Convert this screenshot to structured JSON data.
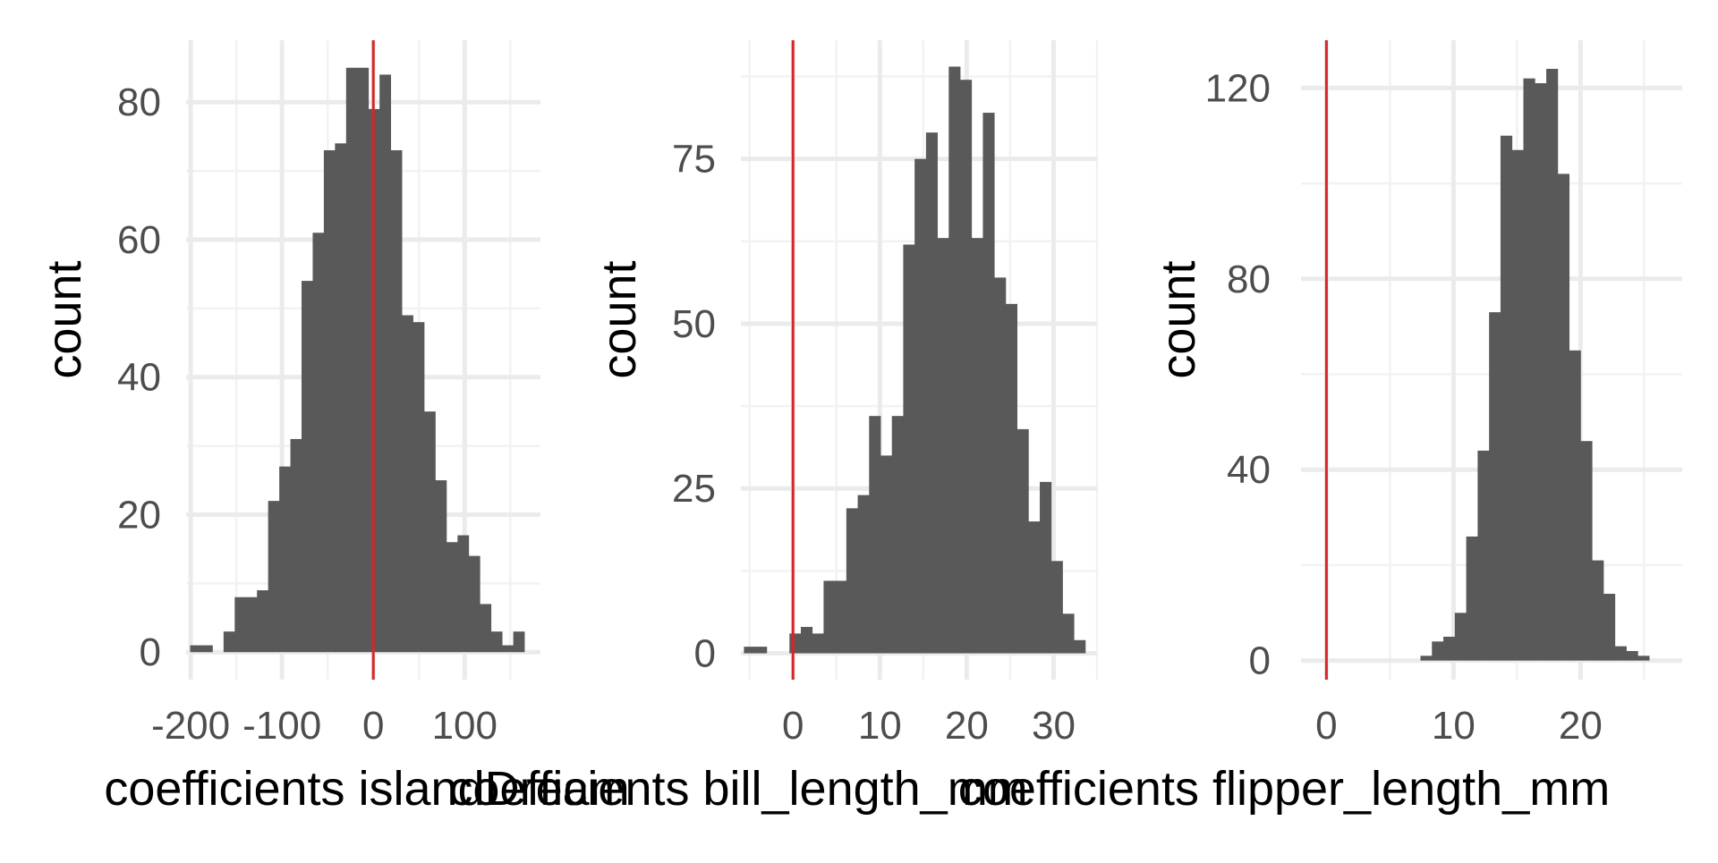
{
  "colors": {
    "bar": "#595959",
    "ref_line": "#d62728",
    "grid_major": "#ebebeb",
    "grid_minor": "#f2f2f2",
    "background": "#ffffff"
  },
  "chart_data": [
    {
      "type": "bar",
      "title": "",
      "xlabel": "coefficients islandDream",
      "ylabel": "count",
      "xlim": [
        -205,
        183
      ],
      "ylim": [
        -4,
        89
      ],
      "x_ticks": [
        -200,
        -100,
        0,
        100
      ],
      "x_tick_labels": [
        "-200",
        "-100",
        "0",
        "100"
      ],
      "y_ticks": [
        0,
        20,
        40,
        60,
        80
      ],
      "y_tick_labels": [
        "0",
        "20",
        "40",
        "60",
        "80"
      ],
      "ref_line_x": 0,
      "grid": true,
      "bin_width": 12.2,
      "bins_start": [
        -200.6,
        -188.4,
        -176.2,
        -164.0,
        -151.8,
        -139.6,
        -127.4,
        -115.2,
        -103.0,
        -90.8,
        -78.6,
        -66.4,
        -54.2,
        -42.0,
        -29.8,
        -17.6,
        -5.4,
        6.8,
        19.0,
        31.2,
        43.4,
        55.6,
        67.8,
        80.0,
        92.2,
        104.4,
        116.6,
        128.8,
        141.0,
        153.2
      ],
      "values": [
        1,
        1,
        0,
        3,
        8,
        8,
        9,
        22,
        27,
        31,
        54,
        61,
        73,
        74,
        85,
        85,
        79,
        84,
        73,
        49,
        48,
        35,
        25,
        16,
        17,
        14,
        7,
        3,
        1,
        3
      ]
    },
    {
      "type": "bar",
      "title": "",
      "xlabel": "coefficients bill_length_mm",
      "ylabel": "count",
      "xlim": [
        -6,
        35
      ],
      "ylim": [
        -4,
        93
      ],
      "x_ticks": [
        0,
        10,
        20,
        30
      ],
      "x_tick_labels": [
        "0",
        "10",
        "20",
        "30"
      ],
      "y_ticks": [
        0,
        25,
        50,
        75
      ],
      "y_tick_labels": [
        "0",
        "25",
        "50",
        "75"
      ],
      "ref_line_x": 0,
      "grid": true,
      "bin_width": 1.31,
      "bins_start": [
        -5.65,
        -4.34,
        -3.03,
        -1.72,
        -0.41,
        0.9,
        2.21,
        3.52,
        4.83,
        6.14,
        7.45,
        8.76,
        10.07,
        11.38,
        12.69,
        14.0,
        15.31,
        16.62,
        17.93,
        19.24,
        20.55,
        21.86,
        23.17,
        24.48,
        25.79,
        27.1,
        28.41,
        29.72,
        31.03,
        32.34
      ],
      "values": [
        1,
        1,
        0,
        0,
        3,
        4,
        3,
        11,
        11,
        22,
        24,
        36,
        30,
        36,
        62,
        75,
        79,
        63,
        89,
        87,
        63,
        82,
        57,
        53,
        34,
        20,
        26,
        14,
        6,
        2
      ]
    },
    {
      "type": "bar",
      "title": "",
      "xlabel": "coefficients flipper_length_mm",
      "ylabel": "count",
      "xlim": [
        -2,
        28
      ],
      "ylim": [
        -4,
        130
      ],
      "x_ticks": [
        0,
        10,
        20
      ],
      "x_tick_labels": [
        "0",
        "10",
        "20"
      ],
      "y_ticks": [
        0,
        40,
        80,
        120
      ],
      "y_tick_labels": [
        "0",
        "40",
        "80",
        "120"
      ],
      "ref_line_x": 0,
      "grid": true,
      "bin_width": 0.9,
      "bins_start": [
        7.4,
        8.3,
        9.2,
        10.1,
        11.0,
        11.9,
        12.8,
        13.7,
        14.6,
        15.5,
        16.4,
        17.3,
        18.2,
        19.1,
        20.0,
        20.9,
        21.8,
        22.7,
        23.6,
        24.5
      ],
      "values": [
        1,
        4,
        5,
        10,
        26,
        44,
        73,
        110,
        107,
        122,
        121,
        124,
        102,
        65,
        46,
        21,
        14,
        3,
        2,
        1
      ]
    }
  ]
}
